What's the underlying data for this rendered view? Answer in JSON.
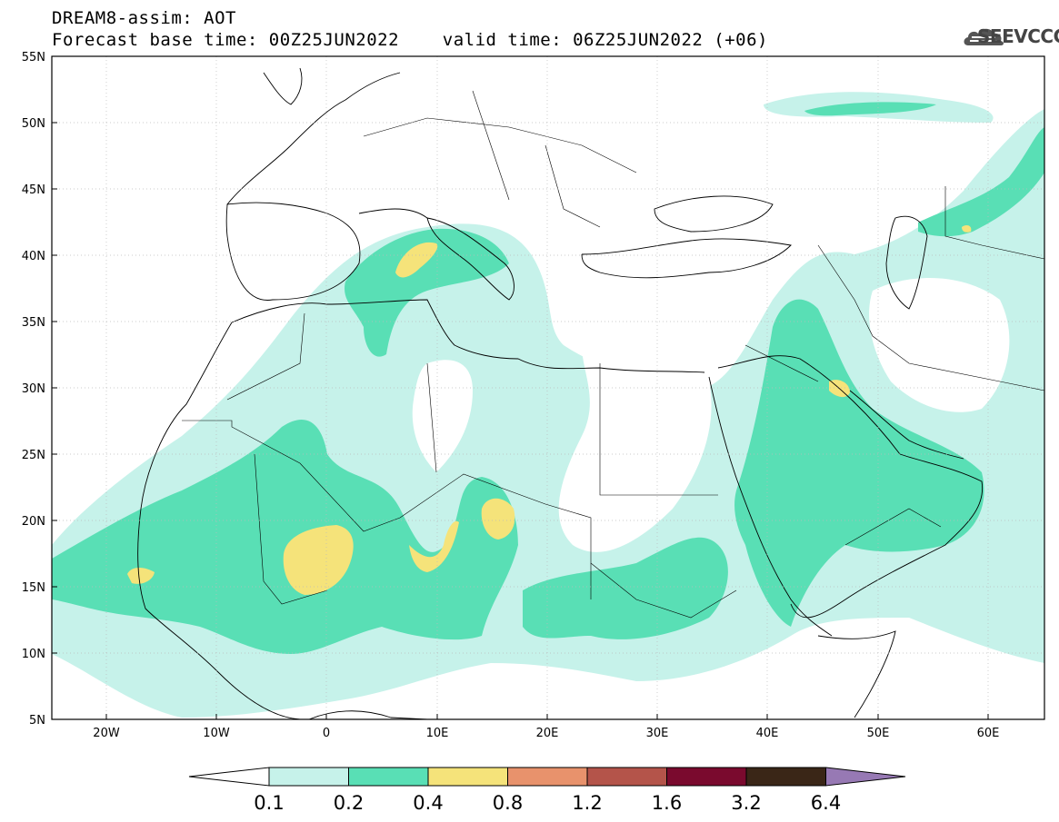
{
  "title": {
    "line1": "DREAM8-assim: AOT",
    "line2": "Forecast base time: 00Z25JUN2022    valid time: 06Z25JUN2022 (+06)"
  },
  "logo": {
    "text": "SEEVCCC",
    "icon": "cloud-icon"
  },
  "map": {
    "lat_labels": [
      "55N",
      "50N",
      "45N",
      "40N",
      "35N",
      "30N",
      "25N",
      "20N",
      "15N",
      "10N",
      "5N"
    ],
    "lon_labels": [
      "20W",
      "10W",
      "0",
      "10E",
      "20E",
      "30E",
      "40E",
      "50E",
      "60E"
    ]
  },
  "colorbar": {
    "labels": [
      "0.1",
      "0.2",
      "0.4",
      "0.8",
      "1.2",
      "1.6",
      "3.2",
      "6.4"
    ],
    "colors": [
      "#c6f2ea",
      "#59dfb5",
      "#f5e37a",
      "#e8926c",
      "#b4544a",
      "#7a0a2e",
      "#3a2617",
      "#9779b4"
    ]
  },
  "colors": {
    "low": "#c6f2ea",
    "mid": "#59dfb5",
    "high": "#f5e37a"
  }
}
